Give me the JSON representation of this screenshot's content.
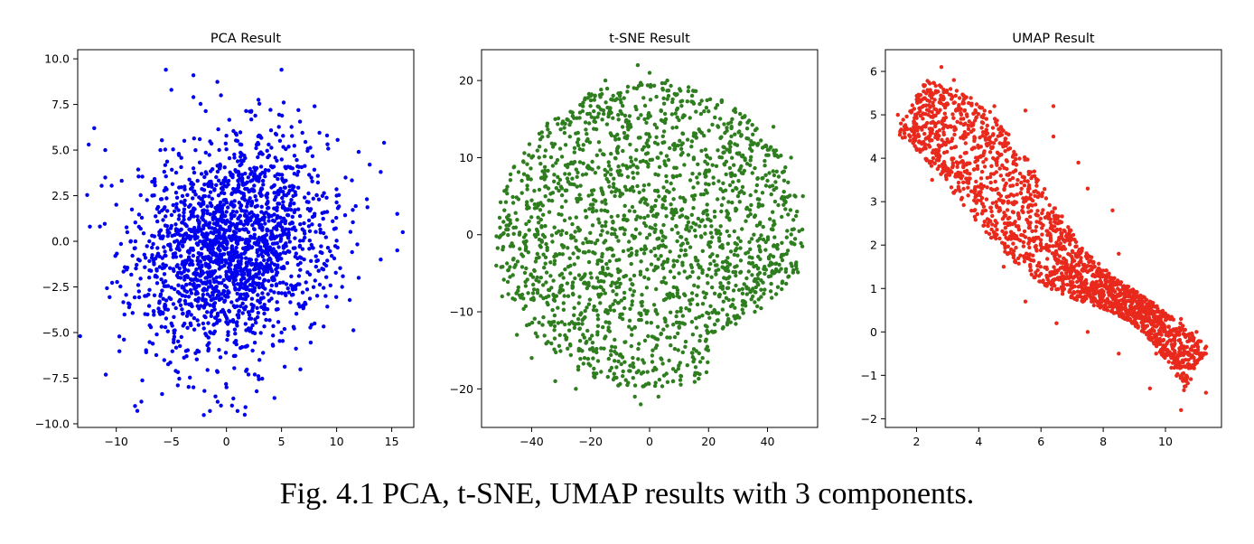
{
  "caption": "Fig. 4.1 PCA, t-SNE, UMAP results with 3 components.",
  "chart_data": [
    {
      "type": "scatter",
      "title": "PCA Result",
      "color": "#0000ee",
      "xlim": [
        -13.5,
        17
      ],
      "ylim": [
        -10.2,
        10.5
      ],
      "xticks": [
        -10,
        -5,
        0,
        5,
        10,
        15
      ],
      "xtick_labels": [
        "−10",
        "−5",
        "0",
        "5",
        "10",
        "15"
      ],
      "yticks": [
        -10,
        -7.5,
        -5,
        -2.5,
        0,
        2.5,
        5,
        7.5,
        10
      ],
      "ytick_labels": [
        "−10.0",
        "−7.5",
        "−5.0",
        "−2.5",
        "0.0",
        "2.5",
        "5.0",
        "7.5",
        "10.0"
      ],
      "n_points": 2000,
      "points": [
        [
          -5.5,
          9.4
        ],
        [
          -3,
          9.1
        ],
        [
          5,
          9.4
        ],
        [
          -5,
          8.3
        ],
        [
          -3,
          7.9
        ],
        [
          -0.5,
          8.0
        ],
        [
          4,
          7.2
        ],
        [
          8,
          7.4
        ],
        [
          -12.5,
          5.3
        ],
        [
          -12,
          6.2
        ],
        [
          -11,
          5.0
        ],
        [
          12,
          4.9
        ],
        [
          13,
          4.2
        ],
        [
          14,
          3.8
        ],
        [
          15.5,
          1.5
        ],
        [
          16,
          0.5
        ],
        [
          15.5,
          -0.5
        ],
        [
          14,
          -1.0
        ],
        [
          12,
          -2.0
        ],
        [
          10.5,
          -2.5
        ],
        [
          9,
          -3.0
        ],
        [
          7,
          -3.5
        ],
        [
          8,
          -4.5
        ],
        [
          5,
          -5.0
        ],
        [
          3,
          -6.5
        ],
        [
          2,
          -7.3
        ],
        [
          0,
          -8.0
        ],
        [
          -1,
          -8.5
        ],
        [
          -2,
          -8.2
        ],
        [
          -3,
          -8.0
        ],
        [
          -1.5,
          -9.3
        ],
        [
          -0.5,
          -9.0
        ],
        [
          1,
          -9.3
        ],
        [
          0.5,
          -9.0
        ],
        [
          -9,
          0.5
        ],
        [
          -8,
          -1.0
        ],
        [
          -6,
          -3.0
        ],
        [
          -5,
          -4.5
        ],
        [
          -10,
          2.0
        ],
        [
          -11,
          3.5
        ],
        [
          -7,
          0.0
        ],
        [
          -2,
          -1.0
        ],
        [
          0,
          0.0
        ],
        [
          2,
          0.5
        ],
        [
          4,
          -1.0
        ],
        [
          6,
          1.0
        ],
        [
          8,
          1.5
        ],
        [
          10,
          2.5
        ],
        [
          -3,
          4.0
        ],
        [
          0,
          3.0
        ],
        [
          3,
          3.5
        ],
        [
          6,
          4.0
        ],
        [
          -6,
          5.0
        ],
        [
          1,
          5.5
        ]
      ]
    },
    {
      "type": "scatter",
      "title": "t-SNE Result",
      "color": "#2e7d1e",
      "xlim": [
        -57,
        57
      ],
      "ylim": [
        -25,
        24
      ],
      "xticks": [
        -40,
        -20,
        0,
        20,
        40
      ],
      "xtick_labels": [
        "−40",
        "−20",
        "0",
        "20",
        "40"
      ],
      "yticks": [
        -20,
        -10,
        0,
        10,
        20
      ],
      "ytick_labels": [
        "−20",
        "−10",
        "0",
        "10",
        "20"
      ],
      "n_points": 2000,
      "points": [
        [
          -4,
          22
        ],
        [
          0,
          21
        ],
        [
          6,
          20
        ],
        [
          -15,
          20
        ],
        [
          -20,
          18
        ],
        [
          15,
          17
        ],
        [
          -32,
          15
        ],
        [
          -40,
          10
        ],
        [
          -48,
          2
        ],
        [
          -52,
          -4
        ],
        [
          -50,
          -8
        ],
        [
          -45,
          -13
        ],
        [
          -40,
          -16
        ],
        [
          -32,
          -19
        ],
        [
          -25,
          -20
        ],
        [
          -18,
          -18
        ],
        [
          -5,
          -21
        ],
        [
          -3,
          -22
        ],
        [
          3,
          -21
        ],
        [
          8,
          -19
        ],
        [
          18,
          -16
        ],
        [
          25,
          -12
        ],
        [
          35,
          -8
        ],
        [
          42,
          -5
        ],
        [
          48,
          -1
        ],
        [
          50,
          3
        ],
        [
          52,
          5
        ],
        [
          48,
          10
        ],
        [
          42,
          14
        ],
        [
          35,
          13
        ],
        [
          28,
          15
        ],
        [
          20,
          16
        ],
        [
          0,
          0
        ],
        [
          -10,
          5
        ],
        [
          10,
          -5
        ],
        [
          20,
          2
        ],
        [
          -20,
          -5
        ],
        [
          -30,
          0
        ],
        [
          30,
          5
        ],
        [
          40,
          7
        ],
        [
          15,
          10
        ],
        [
          -15,
          -10
        ],
        [
          5,
          12
        ],
        [
          -5,
          -12
        ]
      ]
    },
    {
      "type": "scatter",
      "title": "UMAP Result",
      "color": "#e8291c",
      "xlim": [
        1,
        11.8
      ],
      "ylim": [
        -2.2,
        6.5
      ],
      "xticks": [
        2,
        4,
        6,
        8,
        10
      ],
      "xtick_labels": [
        "2",
        "4",
        "6",
        "8",
        "10"
      ],
      "yticks": [
        -2,
        -1,
        0,
        1,
        2,
        3,
        4,
        5,
        6
      ],
      "ytick_labels": [
        "−2",
        "−1",
        "0",
        "1",
        "2",
        "3",
        "4",
        "5",
        "6"
      ],
      "n_points": 2000,
      "points": [
        [
          1.4,
          5.0
        ],
        [
          1.5,
          4.8
        ],
        [
          2.8,
          6.1
        ],
        [
          3.2,
          5.8
        ],
        [
          2.5,
          5.5
        ],
        [
          3.5,
          5.3
        ],
        [
          4.5,
          5.2
        ],
        [
          5.5,
          5.1
        ],
        [
          6.4,
          5.2
        ],
        [
          6.4,
          4.5
        ],
        [
          7.2,
          3.9
        ],
        [
          7.5,
          3.3
        ],
        [
          8.3,
          2.8
        ],
        [
          8.5,
          1.8
        ],
        [
          8.3,
          1.0
        ],
        [
          9.5,
          0.7
        ],
        [
          10.5,
          0.3
        ],
        [
          11,
          0.0
        ],
        [
          11.3,
          -0.5
        ],
        [
          11.3,
          -1.4
        ],
        [
          10.5,
          -1.8
        ],
        [
          9.5,
          -1.3
        ],
        [
          8.5,
          -0.5
        ],
        [
          7.5,
          0.0
        ],
        [
          6.5,
          0.2
        ],
        [
          5.5,
          0.7
        ],
        [
          4.8,
          1.5
        ],
        [
          4.3,
          2.5
        ],
        [
          4.0,
          3.2
        ],
        [
          3.2,
          3.2
        ],
        [
          2.5,
          3.5
        ],
        [
          2.2,
          4.2
        ],
        [
          5,
          3.5
        ],
        [
          6,
          2.5
        ],
        [
          7,
          1.5
        ],
        [
          9.7,
          -0.5
        ]
      ]
    }
  ]
}
